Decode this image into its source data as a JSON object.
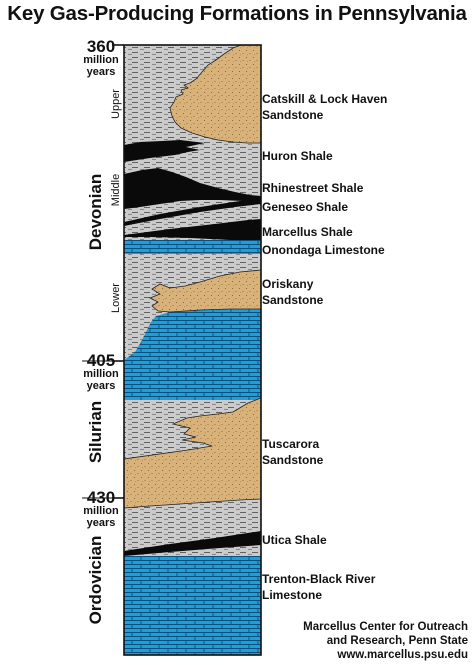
{
  "title": "Key Gas-Producing Formations in Pennsylvania",
  "ages": [
    {
      "value": "360",
      "unit_line1": "million",
      "unit_line2": "years"
    },
    {
      "value": "405",
      "unit_line1": "million",
      "unit_line2": "years"
    },
    {
      "value": "430",
      "unit_line1": "million",
      "unit_line2": "years"
    }
  ],
  "periods": {
    "devonian": "Devonian",
    "silurian": "Silurian",
    "ordovician": "Ordovician"
  },
  "epochs": {
    "upper": "Upper",
    "middle": "Middle",
    "lower": "Lower"
  },
  "formations": {
    "catskill_line1": "Catskill & Lock Haven",
    "catskill_line2": "Sandstone",
    "huron": "Huron Shale",
    "rhinestreet": "Rhinestreet Shale",
    "geneseo": "Geneseo Shale",
    "marcellus": "Marcellus Shale",
    "onondaga": "Onondaga Limestone",
    "oriskany_line1": "Oriskany",
    "oriskany_line2": "Sandstone",
    "tuscarora_line1": "Tuscarora",
    "tuscarora_line2": "Sandstone",
    "utica": "Utica Shale",
    "trenton_line1": "Trenton-Black River",
    "trenton_line2": "Limestone"
  },
  "credit": {
    "line1": "Marcellus Center for Outreach",
    "line2": "and Research, Penn State",
    "line3": "www.marcellus.psu.edu"
  },
  "colors": {
    "sandstone": "#d9b27a",
    "shale_gray": "#c9c9c9",
    "black_shale": "#0a0a0a",
    "limestone": "#1e9fdb"
  }
}
